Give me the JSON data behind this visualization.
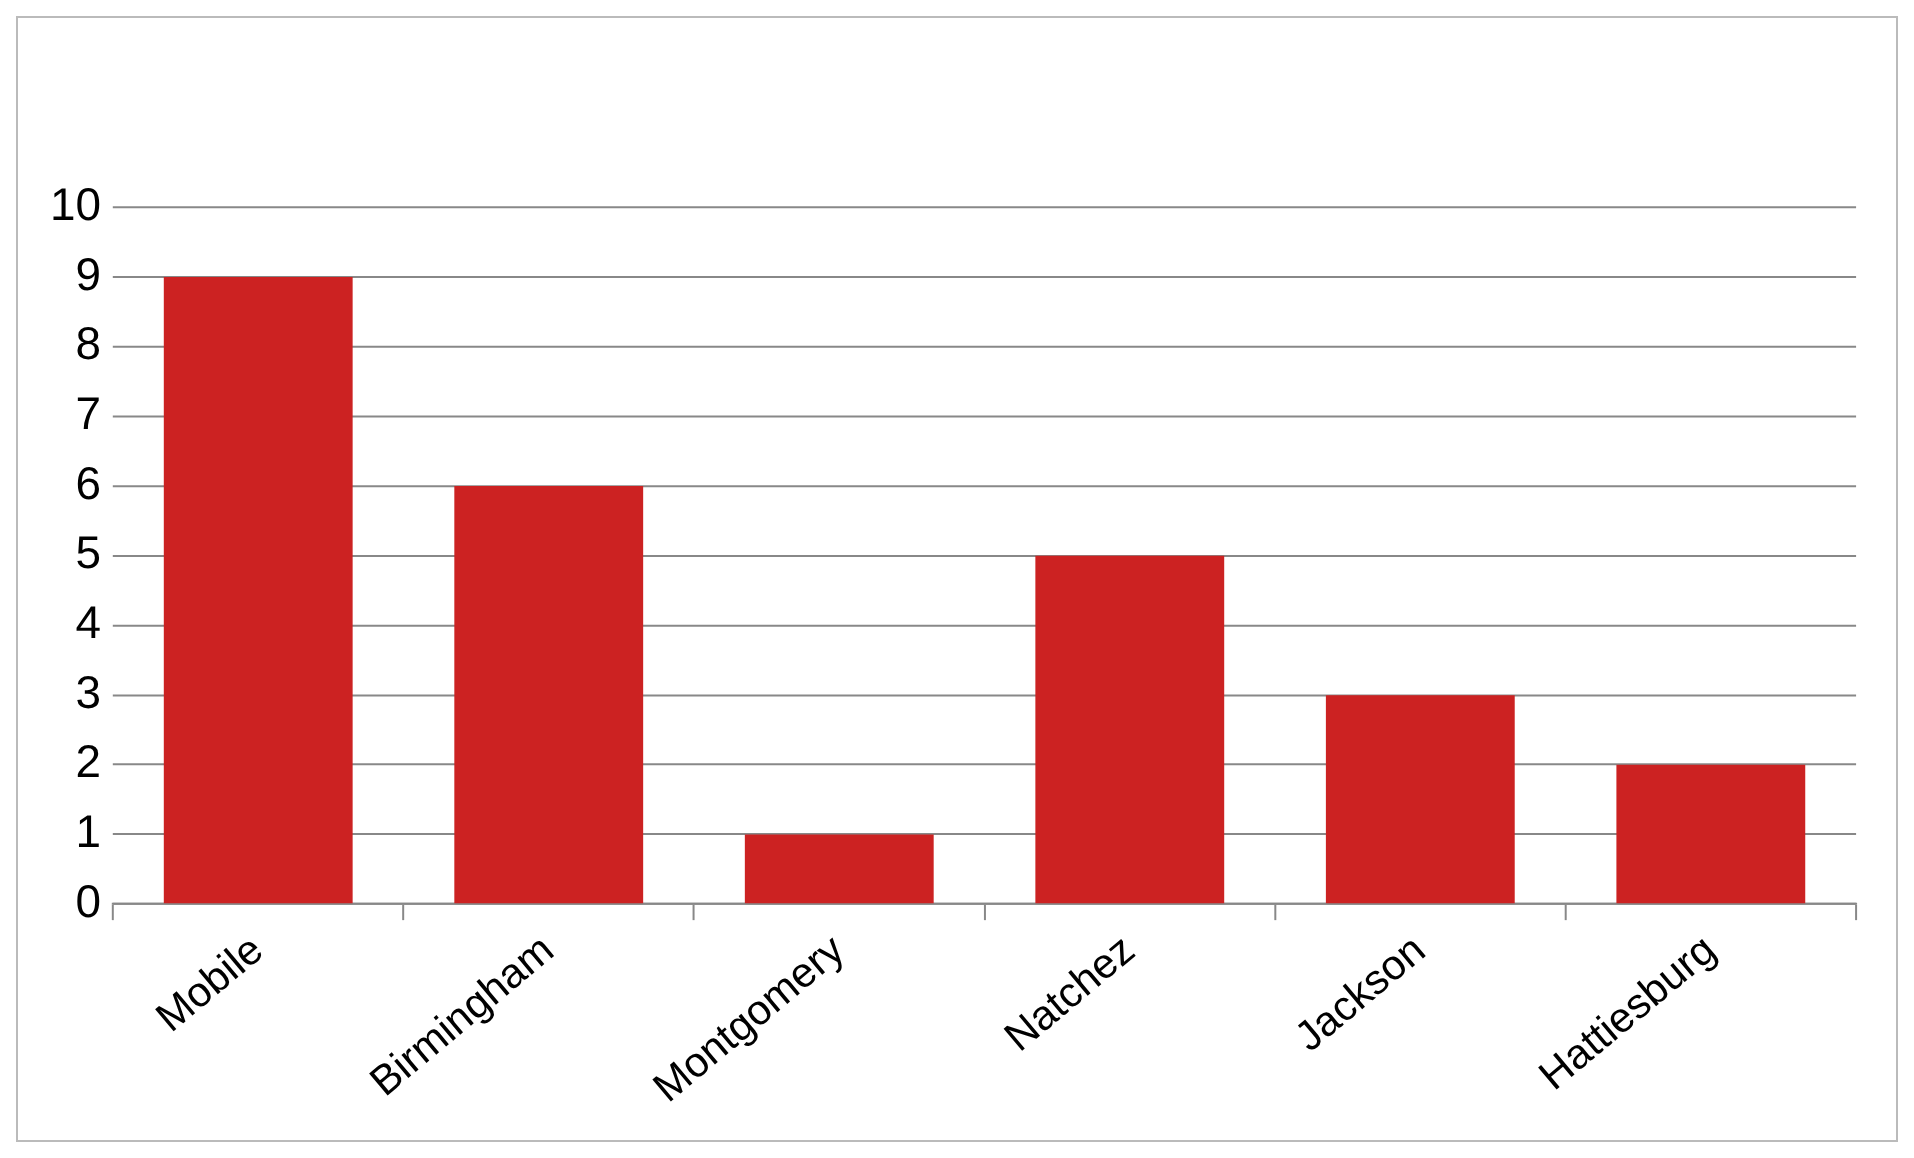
{
  "chart_data": {
    "type": "bar",
    "categories": [
      "Mobile",
      "Birmingham",
      "Montgomery",
      "Natchez",
      "Jackson",
      "Hattiesburg"
    ],
    "values": [
      9,
      6,
      1,
      5,
      3,
      2
    ],
    "color": "#cc2222",
    "ylim": [
      0,
      10
    ],
    "yticks": [
      0,
      1,
      2,
      3,
      4,
      5,
      6,
      7,
      8,
      9,
      10
    ],
    "grid": "y",
    "legend": false
  }
}
